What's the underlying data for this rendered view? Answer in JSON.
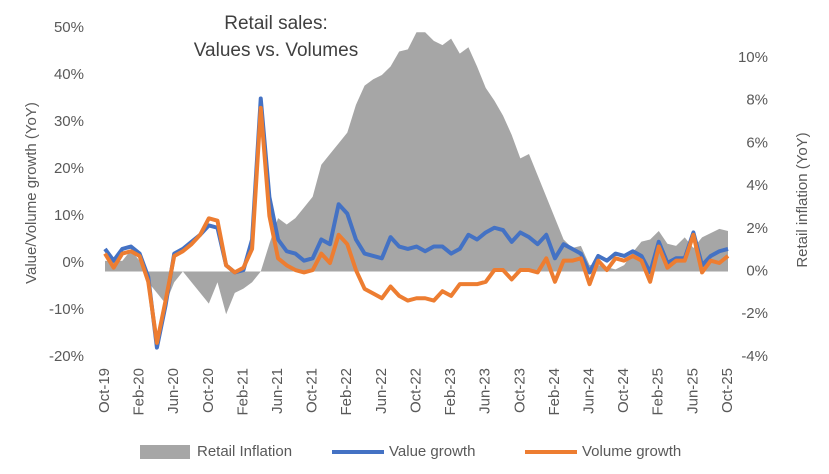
{
  "chart_data": {
    "type": "combo",
    "title": "Retail sales:",
    "subtitle": "Values vs. Volumes",
    "y_label": "Value/Volume growth (YoY)",
    "y2_label": "Retail inflation (YoY)",
    "categories": [
      "Oct-19",
      null,
      null,
      null,
      "Feb-20",
      null,
      null,
      null,
      "Jun-20",
      null,
      null,
      null,
      "Oct-20",
      null,
      null,
      null,
      "Feb-21",
      null,
      null,
      null,
      "Jun-21",
      null,
      null,
      null,
      "Oct-21",
      null,
      null,
      null,
      "Feb-22",
      null,
      null,
      null,
      "Jun-22",
      null,
      null,
      null,
      "Oct-22",
      null,
      null,
      null,
      "Feb-23",
      null,
      null,
      null,
      "Jun-23",
      null,
      null,
      null,
      "Oct-23",
      null,
      null,
      null,
      "Feb-24",
      null,
      null,
      null,
      "Jun-24",
      null,
      null,
      null,
      "Oct-24",
      null,
      null,
      null,
      "Feb-25",
      null,
      null,
      null,
      "Jun-25",
      null,
      null,
      null,
      "Oct-25"
    ],
    "series": [
      {
        "name": "Retail Inflation",
        "type": "area",
        "axis": "y2",
        "color": "#a6a6a6",
        "values": [
          0.5,
          0.5,
          0.5,
          1,
          0.5,
          -0.5,
          -1,
          -1.5,
          -0.5,
          0,
          -0.5,
          -1,
          -1.5,
          -0.5,
          -2,
          -1,
          -0.8,
          -0.5,
          0,
          1.3,
          2.5,
          2.2,
          2.5,
          3,
          3.5,
          5,
          5.5,
          6,
          6.5,
          7.8,
          8.7,
          9,
          9.2,
          9.6,
          10.3,
          10.4,
          11.2,
          11.2,
          10.8,
          10.6,
          10.9,
          10.2,
          10.5,
          9.6,
          8.6,
          8,
          7.3,
          6.4,
          5.3,
          5.5,
          4.5,
          3.5,
          2.5,
          1.5,
          1.1,
          1.2,
          0.3,
          0.3,
          0.2,
          0.1,
          0.3,
          0.9,
          1.4,
          1.5,
          1.9,
          1.3,
          1.2,
          1.6,
          1.1,
          1.6,
          1.8,
          2,
          1.9
        ]
      },
      {
        "name": "Value growth",
        "type": "line",
        "color": "#4472c4",
        "values": [
          3,
          0.5,
          3,
          3.5,
          2,
          -3,
          -18,
          -9,
          2,
          3,
          4.5,
          6,
          8,
          7.5,
          -0.5,
          -2,
          -1.5,
          5,
          35,
          14,
          5,
          2.5,
          2,
          0.5,
          1,
          5,
          4,
          12.5,
          10.5,
          5,
          2,
          1.5,
          1,
          5.5,
          3.5,
          3,
          3.5,
          2.5,
          3.5,
          3.5,
          2,
          3,
          6,
          5,
          6.5,
          7.5,
          7,
          4.5,
          6.5,
          5.5,
          4,
          6,
          1,
          4,
          3,
          2,
          -2,
          1.5,
          0.5,
          2,
          1.5,
          2.5,
          1.5,
          -2,
          4.5,
          0,
          1,
          1,
          6.5,
          -0.5,
          1.5,
          2.5,
          3
        ]
      },
      {
        "name": "Volume growth",
        "type": "line",
        "color": "#ed7d31",
        "values": [
          2,
          -1,
          2,
          2.5,
          1.5,
          -4,
          -17,
          -8,
          1.5,
          2.5,
          4,
          6,
          9.5,
          9,
          -0.5,
          -2,
          -1,
          3,
          33,
          10,
          1,
          -0.5,
          -1.5,
          -2,
          -1.5,
          2,
          0,
          6,
          4,
          -1.5,
          -5.5,
          -6.5,
          -7.5,
          -5,
          -7,
          -8,
          -7.5,
          -7.5,
          -8,
          -6,
          -7,
          -4.5,
          -4.5,
          -4.5,
          -4,
          -1.5,
          -1.5,
          -3.5,
          -1.5,
          -1.5,
          -2,
          1,
          -4,
          0.5,
          0.5,
          1,
          -4.5,
          0.5,
          -1.5,
          1,
          0.5,
          1.5,
          0.5,
          -4,
          3.5,
          -1,
          0.5,
          0.5,
          6,
          -2,
          0.5,
          0,
          1.5
        ]
      }
    ],
    "ylim": [
      -20,
      50
    ],
    "yticks": [
      {
        "value": -20,
        "label": "-20%"
      },
      {
        "value": -10,
        "label": "-10%"
      },
      {
        "value": 0,
        "label": "0%"
      },
      {
        "value": 10,
        "label": "10%"
      },
      {
        "value": 20,
        "label": "20%"
      },
      {
        "value": 30,
        "label": "30%"
      },
      {
        "value": 40,
        "label": "40%"
      },
      {
        "value": 50,
        "label": "50%"
      }
    ],
    "y2lim": [
      -4,
      11.4
    ],
    "y2ticks": [
      {
        "value": -4,
        "label": "-4%"
      },
      {
        "value": -2,
        "label": "-2%"
      },
      {
        "value": 0,
        "label": "0%"
      },
      {
        "value": 2,
        "label": "2%"
      },
      {
        "value": 4,
        "label": "4%"
      },
      {
        "value": 6,
        "label": "6%"
      },
      {
        "value": 8,
        "label": "8%"
      },
      {
        "value": 10,
        "label": "10%"
      }
    ],
    "legend": "bottom"
  }
}
